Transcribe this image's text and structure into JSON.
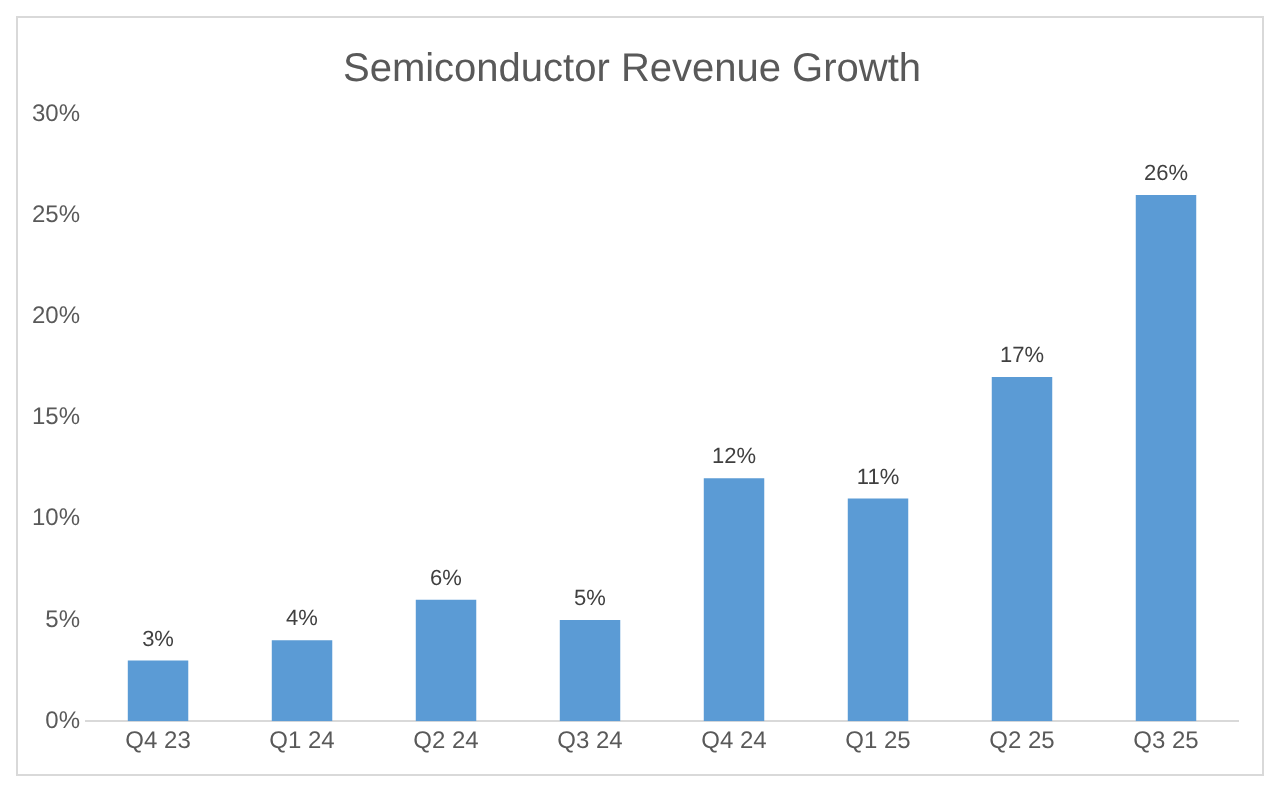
{
  "chart_data": {
    "type": "bar",
    "title": "Semiconductor Revenue Growth",
    "categories": [
      "Q4 23",
      "Q1 24",
      "Q2 24",
      "Q3 24",
      "Q4 24",
      "Q1 25",
      "Q2 25",
      "Q3 25"
    ],
    "values": [
      3,
      4,
      6,
      5,
      12,
      11,
      17,
      26
    ],
    "value_labels": [
      "3%",
      "4%",
      "6%",
      "5%",
      "12%",
      "11%",
      "17%",
      "26%"
    ],
    "color": "#5b9bd5",
    "ylim": [
      0,
      30
    ],
    "yticks": [
      {
        "value": 0,
        "label": "0%"
      },
      {
        "value": 5,
        "label": "5%"
      },
      {
        "value": 10,
        "label": "10%"
      },
      {
        "value": 15,
        "label": "15%"
      },
      {
        "value": 20,
        "label": "20%"
      },
      {
        "value": 25,
        "label": "25%"
      },
      {
        "value": 30,
        "label": "30%"
      }
    ],
    "grid": false,
    "legend": false
  }
}
